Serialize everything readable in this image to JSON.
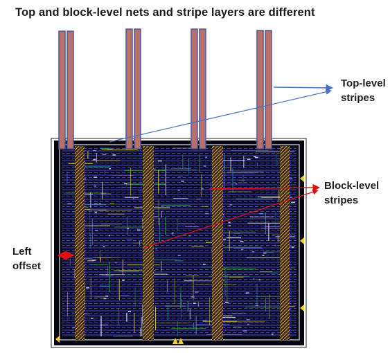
{
  "title": "Top and block-level nets and stripe layers are different",
  "labels": {
    "top_level_1": "Top-level",
    "top_level_2": "stripes",
    "block_level_1": "Block-level",
    "block_level_2": "stripes",
    "left_offset_1": "Left",
    "left_offset_2": "offset"
  },
  "colors": {
    "top_stripe_fill": "#b87068",
    "top_stripe_edge": "#4a5aa0",
    "chip_border": "#c8c8c8",
    "chip_bg": "#0c0c22",
    "block_stripe": "#c89848",
    "blue_arrow": "#4472c4",
    "red_arrow": "#e01010",
    "pin_marker": "#f0d020"
  }
}
